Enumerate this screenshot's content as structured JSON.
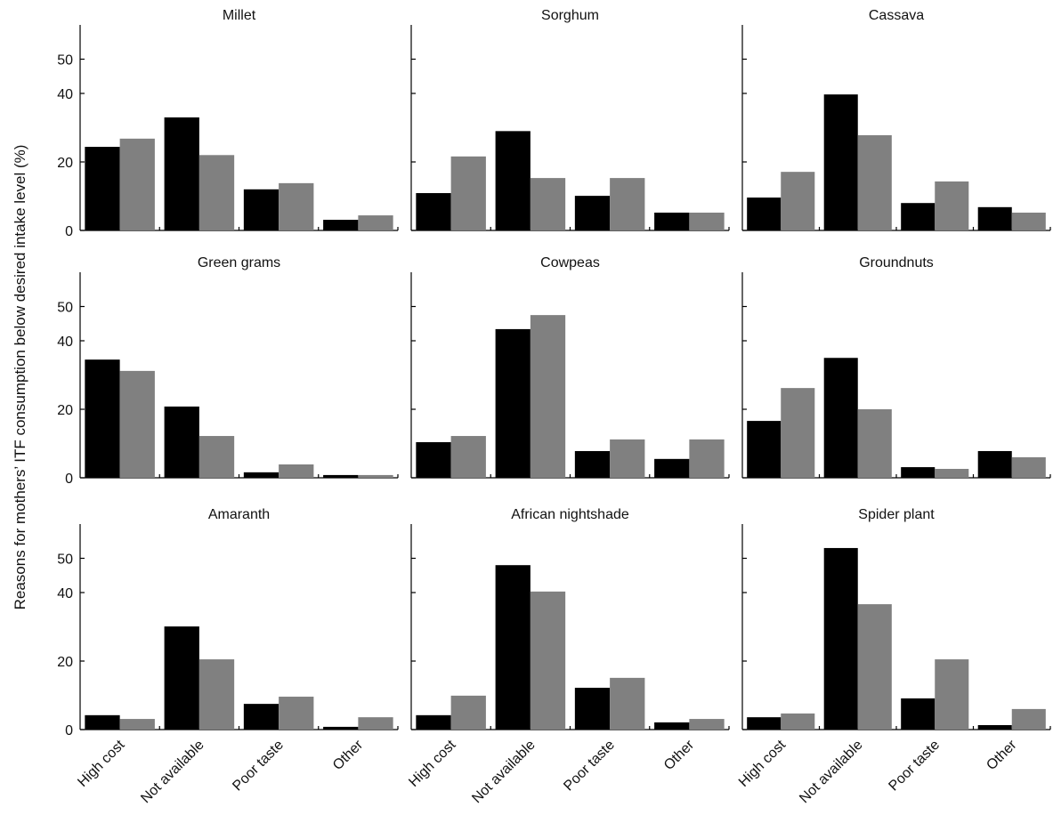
{
  "ylabel": "Reasons for mothers’ ITF consumption below desired intake level (%)",
  "chart_data": [
    {
      "type": "bar",
      "title": "Millet",
      "ylim": [
        0,
        60
      ],
      "yticks": [
        0,
        20,
        40,
        50
      ],
      "series": [
        {
          "color": "#000000",
          "values": [
            24.4,
            33,
            12,
            3.1
          ]
        },
        {
          "color": "#808080",
          "values": [
            26.8,
            22,
            13.8,
            4.4
          ]
        }
      ]
    },
    {
      "type": "bar",
      "title": "Sorghum",
      "ylim": [
        0,
        60
      ],
      "yticks": [
        0,
        20,
        40,
        50
      ],
      "series": [
        {
          "color": "#000000",
          "values": [
            10.9,
            29,
            10.1,
            5.2
          ]
        },
        {
          "color": "#808080",
          "values": [
            21.6,
            15.3,
            15.3,
            5.2
          ]
        }
      ]
    },
    {
      "type": "bar",
      "title": "Cassava",
      "ylim": [
        0,
        60
      ],
      "yticks": [
        0,
        20,
        40,
        50
      ],
      "series": [
        {
          "color": "#000000",
          "values": [
            9.6,
            39.7,
            8,
            6.8
          ]
        },
        {
          "color": "#808080",
          "values": [
            17.1,
            27.8,
            14.3,
            5.2
          ]
        }
      ]
    },
    {
      "type": "bar",
      "title": "Green grams",
      "ylim": [
        0,
        60
      ],
      "yticks": [
        0,
        20,
        40,
        50
      ],
      "series": [
        {
          "color": "#000000",
          "values": [
            34.5,
            20.8,
            1.6,
            0.8
          ]
        },
        {
          "color": "#808080",
          "values": [
            31.2,
            12.2,
            3.9,
            0.8
          ]
        }
      ]
    },
    {
      "type": "bar",
      "title": "Cowpeas",
      "ylim": [
        0,
        60
      ],
      "yticks": [
        0,
        20,
        40,
        50
      ],
      "series": [
        {
          "color": "#000000",
          "values": [
            10.4,
            43.4,
            7.8,
            5.5
          ]
        },
        {
          "color": "#808080",
          "values": [
            12.2,
            47.5,
            11.2,
            11.2
          ]
        }
      ]
    },
    {
      "type": "bar",
      "title": "Groundnuts",
      "ylim": [
        0,
        60
      ],
      "yticks": [
        0,
        20,
        40,
        50
      ],
      "series": [
        {
          "color": "#000000",
          "values": [
            16.6,
            35,
            3.1,
            7.8
          ]
        },
        {
          "color": "#808080",
          "values": [
            26.2,
            20,
            2.6,
            6
          ]
        }
      ]
    },
    {
      "type": "bar",
      "title": "Amaranth",
      "categories": [
        "High cost",
        "Not available",
        "Poor taste",
        "Other"
      ],
      "ylim": [
        0,
        60
      ],
      "yticks": [
        0,
        20,
        40,
        50
      ],
      "series": [
        {
          "color": "#000000",
          "values": [
            4.2,
            30.1,
            7.5,
            0.8
          ]
        },
        {
          "color": "#808080",
          "values": [
            3.1,
            20.5,
            9.6,
            3.6
          ]
        }
      ]
    },
    {
      "type": "bar",
      "title": "African nightshade",
      "categories": [
        "High cost",
        "Not available",
        "Poor taste",
        "Other"
      ],
      "ylim": [
        0,
        60
      ],
      "yticks": [
        0,
        20,
        40,
        50
      ],
      "series": [
        {
          "color": "#000000",
          "values": [
            4.2,
            48,
            12.2,
            2.1
          ]
        },
        {
          "color": "#808080",
          "values": [
            9.9,
            40.3,
            15.1,
            3.1
          ]
        }
      ]
    },
    {
      "type": "bar",
      "title": "Spider plant",
      "categories": [
        "High cost",
        "Not available",
        "Poor taste",
        "Other"
      ],
      "ylim": [
        0,
        60
      ],
      "yticks": [
        0,
        20,
        40,
        50
      ],
      "series": [
        {
          "color": "#000000",
          "values": [
            3.6,
            53,
            9.1,
            1.3
          ]
        },
        {
          "color": "#808080",
          "values": [
            4.7,
            36.6,
            20.5,
            6
          ]
        }
      ]
    }
  ]
}
